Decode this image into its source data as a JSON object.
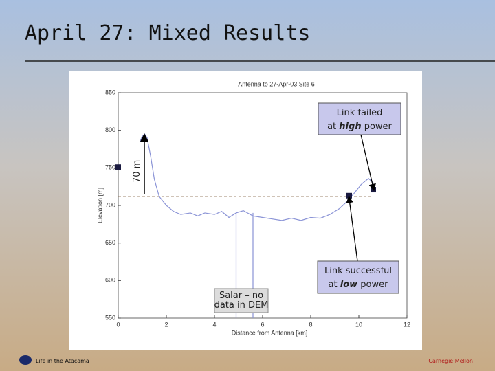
{
  "slide": {
    "title": "April 27: Mixed Results",
    "footer_left": "Life in the Atacama",
    "footer_right": "Carnegie Mellon"
  },
  "chart_data": {
    "type": "line",
    "title": "Antenna to 27-Apr-03 Site 6",
    "x_label": "Distance from Antenna [km]",
    "y_label": "Elevation [m]",
    "xlim": [
      0,
      12
    ],
    "xticks": [
      0,
      2,
      4,
      6,
      8,
      10,
      12
    ],
    "ylim": [
      550,
      850
    ],
    "yticks": [
      550,
      600,
      650,
      700,
      750,
      800,
      850
    ],
    "series": [
      {
        "name": "Elevation profile",
        "color": "#8a93d6",
        "x": [
          0.9,
          1.0,
          1.1,
          1.2,
          1.35,
          1.5,
          1.7,
          2.0,
          2.3,
          2.6,
          3.0,
          3.3,
          3.6,
          4.0,
          4.3,
          4.6,
          4.9,
          5.2,
          5.6,
          6.0,
          6.4,
          6.8,
          7.2,
          7.6,
          8.0,
          8.4,
          8.8,
          9.2,
          9.5,
          9.8,
          10.1,
          10.4,
          10.6
        ],
        "values": [
          785,
          792,
          795,
          790,
          765,
          735,
          712,
          700,
          692,
          688,
          690,
          686,
          690,
          688,
          692,
          684,
          690,
          693,
          686,
          684,
          682,
          680,
          683,
          680,
          684,
          683,
          688,
          696,
          705,
          716,
          728,
          736,
          730
        ]
      }
    ],
    "markers": {
      "color": "#1a1a40",
      "x": [
        0,
        9.6,
        10.6
      ],
      "values": [
        751,
        713,
        721
      ]
    },
    "reference_line": 712,
    "salar_edges": [
      4.9,
      5.6
    ],
    "annotations": {
      "height": "70 m",
      "failed": {
        "line1": "Link failed",
        "pre": "at",
        "em": "high",
        "post": "power"
      },
      "success": {
        "line1": "Link successful",
        "pre": "at",
        "em": "low",
        "post": "power"
      },
      "salar": {
        "line1": "Salar – no",
        "line2": "data in DEM"
      }
    }
  }
}
